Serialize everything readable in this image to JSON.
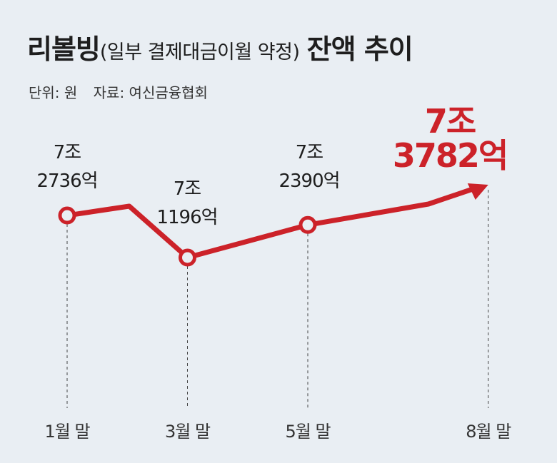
{
  "title": {
    "main": "리볼빙",
    "sub": "(일부 결제대금이월 약정)",
    "tail": "잔액 추이"
  },
  "unit_label": "단위: 원",
  "source_label": "자료: 여신금융협회",
  "colors": {
    "background": "#e9eef3",
    "line": "#cc2229",
    "highlight": "#cc2229",
    "text": "#1e1e1e"
  },
  "chart_data": {
    "type": "line",
    "title": "리볼빙(일부 결제대금이월 약정) 잔액 추이",
    "unit": "원",
    "categories": [
      "1월 말",
      "3월 말",
      "5월 말",
      "8월 말"
    ],
    "values": [
      72736,
      71196,
      72390,
      73782
    ],
    "value_labels": [
      [
        "7조",
        "2736억"
      ],
      [
        "7조",
        "1196억"
      ],
      [
        "7조",
        "2390억"
      ],
      [
        "7조",
        "3782억"
      ]
    ],
    "highlight_index": 3,
    "grid": false,
    "legend": "none"
  }
}
